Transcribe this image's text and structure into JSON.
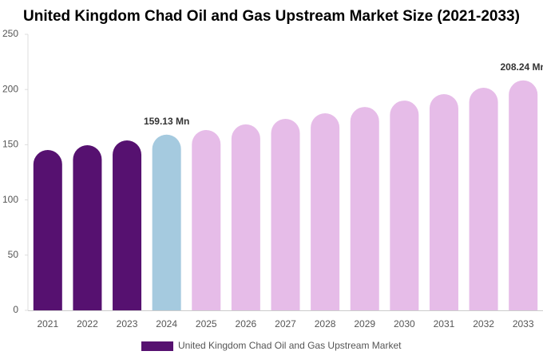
{
  "chart_data": {
    "type": "bar",
    "title": "United Kingdom Chad Oil and Gas Upstream Market Size (2021-2033)",
    "categories": [
      "2021",
      "2022",
      "2023",
      "2024",
      "2025",
      "2026",
      "2027",
      "2028",
      "2029",
      "2030",
      "2031",
      "2032",
      "2033"
    ],
    "series": [
      {
        "name": "United Kingdom Chad Oil and Gas Upstream Market",
        "color": "#561170",
        "colors": [
          "#561170",
          "#561170",
          "#561170",
          "#a5cadf",
          "#e6bce8",
          "#e6bce8",
          "#e6bce8",
          "#e6bce8",
          "#e6bce8",
          "#e6bce8",
          "#e6bce8",
          "#e6bce8",
          "#e6bce8"
        ],
        "values": [
          145.2,
          149.6,
          153.9,
          159.13,
          163.3,
          168.4,
          173.4,
          178.5,
          184.2,
          190.0,
          195.8,
          201.6,
          208.24
        ],
        "value_labels": [
          null,
          null,
          null,
          "159.13 Mn",
          null,
          null,
          null,
          null,
          null,
          null,
          null,
          null,
          "208.24 Mn"
        ]
      }
    ],
    "ylim": [
      0,
      250
    ],
    "yticks": [
      0,
      50,
      100,
      150,
      200,
      250
    ]
  }
}
